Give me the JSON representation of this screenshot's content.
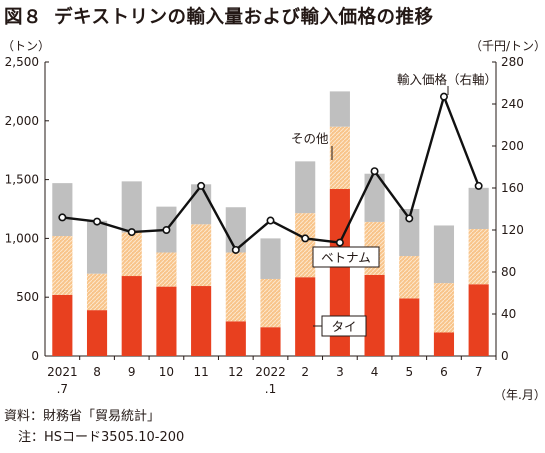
{
  "page": {
    "figure_number": "図８",
    "title": "デキストリンの輸入量および輸入価格の推移",
    "source": "資料：財務省「貿易統計」",
    "note": "注：HSコード3505.10-200"
  },
  "colors": {
    "thai": "#e8401f",
    "vietnam": "#f8c48a",
    "other": "#bfbfbf",
    "price_line": "#111111"
  },
  "chart_data": {
    "type": "bar",
    "stacked": true,
    "categories": [
      "2021\n.7",
      "8",
      "9",
      "10",
      "11",
      "12",
      "2022\n.1",
      "2",
      "3",
      "4",
      "5",
      "6",
      "7"
    ],
    "xlabel": "（年.月）",
    "ylabel_left": "（トン）",
    "ylabel_right": "（千円/トン）",
    "ylim_left": [
      0,
      2500
    ],
    "yticks_left": [
      "0",
      "500",
      "1,000",
      "1,500",
      "2,000",
      "2,500"
    ],
    "ylim_right": [
      0,
      280
    ],
    "yticks_right": [
      "0",
      "40",
      "80",
      "120",
      "160",
      "200",
      "240",
      "280"
    ],
    "series": [
      {
        "name": "タイ",
        "values": [
          520,
          390,
          680,
          590,
          595,
          295,
          245,
          670,
          1420,
          690,
          490,
          200,
          610
        ]
      },
      {
        "name": "ベトナム",
        "values": [
          500,
          310,
          370,
          290,
          525,
          585,
          410,
          545,
          530,
          450,
          360,
          420,
          470
        ]
      },
      {
        "name": "その他",
        "values": [
          450,
          450,
          435,
          390,
          340,
          385,
          345,
          440,
          300,
          410,
          400,
          490,
          350
        ]
      }
    ],
    "line_series": {
      "name": "輸入価格（右軸）",
      "axis": "right",
      "values": [
        132,
        128,
        118,
        120,
        162,
        101,
        129,
        112,
        108,
        176,
        131,
        247,
        162
      ]
    },
    "grid": false
  }
}
